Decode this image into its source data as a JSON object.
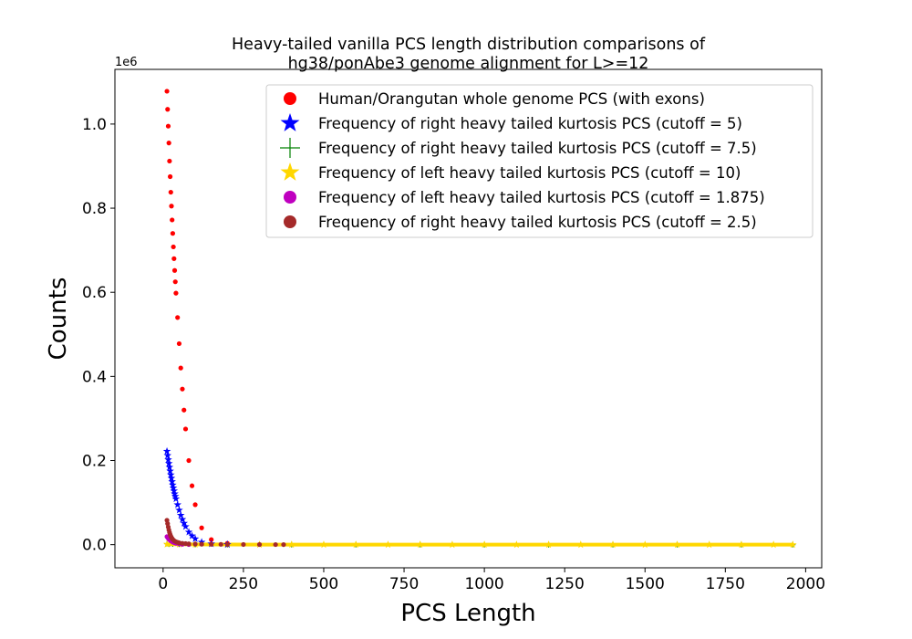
{
  "chart_data": {
    "type": "scatter",
    "title_lines": [
      "Heavy-tailed vanilla PCS length distribution comparisons of",
      "hg38/ponAbe3 genome alignment for L>=12"
    ],
    "xlabel": "PCS Length",
    "ylabel": "Counts",
    "y_offset_label": "1e6",
    "xlim": [
      -150,
      2050
    ],
    "ylim": [
      -55000,
      1130000
    ],
    "x_ticks": [
      0,
      250,
      500,
      750,
      1000,
      1250,
      1500,
      1750,
      2000
    ],
    "x_tick_labels": [
      "0",
      "250",
      "500",
      "750",
      "1000",
      "1250",
      "1500",
      "1750",
      "2000"
    ],
    "y_ticks": [
      0,
      200000,
      400000,
      600000,
      800000,
      1000000
    ],
    "y_tick_labels": [
      "0.0",
      "0.2",
      "0.4",
      "0.6",
      "0.8",
      "1.0"
    ],
    "legend_position": "top-right",
    "series": [
      {
        "name": "Human/Orangutan whole genome PCS (with exons)",
        "color": "#ff0000",
        "marker": "circle",
        "x": [
          12,
          14,
          16,
          18,
          20,
          22,
          24,
          26,
          28,
          30,
          32,
          34,
          36,
          38,
          40,
          45,
          50,
          55,
          60,
          65,
          70,
          80,
          90,
          100,
          120,
          150,
          200
        ],
        "y": [
          1078000,
          1035000,
          995000,
          955000,
          912000,
          875000,
          838000,
          805000,
          772000,
          740000,
          708000,
          680000,
          652000,
          625000,
          598000,
          540000,
          478000,
          420000,
          370000,
          320000,
          275000,
          200000,
          140000,
          95000,
          40000,
          12000,
          3000
        ]
      },
      {
        "name": "Frequency of right heavy tailed kurtosis PCS (cutoff = 5)",
        "color": "#0000ff",
        "marker": "star",
        "x": [
          12,
          14,
          16,
          18,
          20,
          22,
          24,
          26,
          28,
          30,
          32,
          34,
          36,
          38,
          40,
          45,
          50,
          55,
          60,
          65,
          70,
          80,
          90,
          100,
          120,
          150,
          200
        ],
        "y": [
          222000,
          212000,
          202000,
          193000,
          184000,
          175000,
          166000,
          158000,
          150000,
          142000,
          135000,
          128000,
          121000,
          115000,
          109000,
          95000,
          82000,
          70000,
          60000,
          51000,
          43000,
          30000,
          21000,
          14000,
          6000,
          2000,
          500
        ]
      },
      {
        "name": "Frequency of right heavy tailed kurtosis PCS (cutoff = 7.5)",
        "color": "#008000",
        "marker": "plus",
        "x": [
          12,
          20,
          30,
          50,
          100,
          200,
          400,
          600,
          800,
          1000,
          1200,
          1400,
          1600,
          1800,
          1960
        ],
        "y": [
          2500,
          2000,
          1500,
          1000,
          500,
          200,
          100,
          50,
          30,
          20,
          10,
          5,
          3,
          2,
          1
        ]
      },
      {
        "name": "Frequency of left heavy tailed kurtosis PCS (cutoff = 10)",
        "color": "#ffd700",
        "marker": "star",
        "x": [
          12,
          50,
          100,
          200,
          300,
          400,
          500,
          600,
          700,
          800,
          900,
          1000,
          1100,
          1200,
          1300,
          1400,
          1500,
          1600,
          1700,
          1800,
          1900,
          1960
        ],
        "y": [
          1000,
          800,
          500,
          300,
          200,
          150,
          120,
          100,
          80,
          60,
          50,
          40,
          30,
          25,
          20,
          15,
          10,
          8,
          6,
          4,
          2,
          1
        ]
      },
      {
        "name": "Frequency of left heavy tailed kurtosis PCS (cutoff = 1.875)",
        "color": "#bf00bf",
        "marker": "circle",
        "x": [
          12,
          15,
          18,
          22,
          26,
          30,
          35,
          40,
          50,
          60,
          80
        ],
        "y": [
          19000,
          16000,
          13000,
          10000,
          8000,
          6000,
          4500,
          3200,
          1800,
          900,
          200
        ]
      },
      {
        "name": "Frequency of right heavy tailed kurtosis PCS (cutoff = 2.5)",
        "color": "#a52a2a",
        "marker": "circle",
        "x": [
          12,
          14,
          16,
          18,
          20,
          22,
          24,
          26,
          28,
          30,
          35,
          40,
          45,
          50,
          60,
          70,
          80,
          100,
          120,
          150,
          180,
          200,
          250,
          300,
          350,
          375
        ],
        "y": [
          58000,
          50000,
          42000,
          35000,
          29000,
          24000,
          20000,
          17000,
          14500,
          12500,
          9000,
          7000,
          5500,
          4500,
          3200,
          2500,
          2000,
          1500,
          1200,
          900,
          700,
          600,
          400,
          300,
          200,
          150
        ]
      }
    ]
  }
}
